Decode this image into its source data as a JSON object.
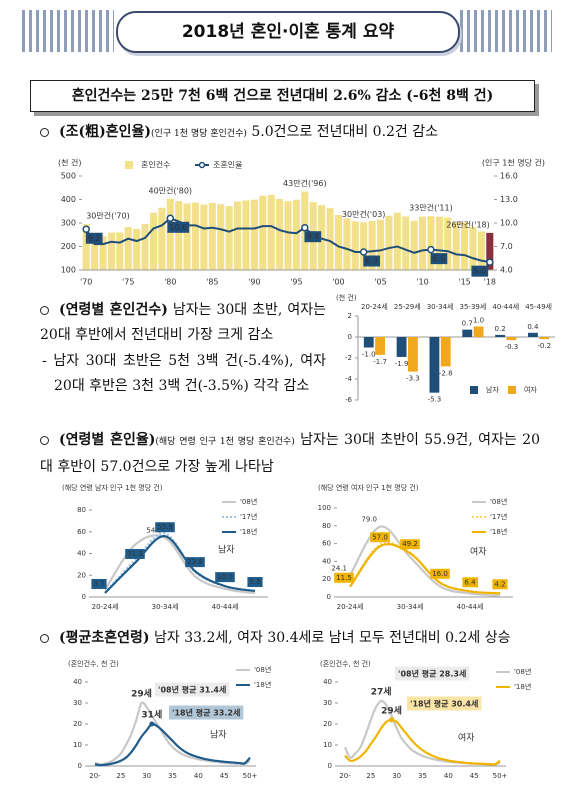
{
  "title": "2018년 혼인·이혼 통계 요약",
  "headline": "혼인건수는 25만 7천 6백 건으로 전년대비 2.6% 감소 (-6천 8백 건)",
  "sections": [
    {
      "label": "(조(粗)혼인율)",
      "note": "(인구 1천 명당 혼인건수)",
      "text": "5.0건으로 전년대비 0.2건 감소"
    },
    {
      "label": "(연령별 혼인건수)",
      "text": "남자는 30대 초반, 여자는 20대 후반에서 전년대비 가장 크게 감소",
      "detail": "- 남자 30대 초반은 5천 3백 건(-5.4%), 여자 20대 후반은 3천 3백 건(-3.5%) 각각 감소"
    },
    {
      "label": "(연령별 혼인율)",
      "note": "(해당 연령 인구 1천 명당 혼인건수)",
      "text": "남자는 30대 초반이 55.9건, 여자는 20대 후반이 57.0건으로 가장 높게 나타남"
    },
    {
      "label": "(평균초혼연령)",
      "text": "남자 33.2세, 여자 30.4세로 남녀 모두 전년대비 0.2세 상승"
    }
  ],
  "chart_data": [
    {
      "type": "combo",
      "y_unit": "(천 건)",
      "y2_unit": "(인구 1천 명당 건)",
      "legend": "top",
      "categories": [
        "'70",
        null,
        null,
        null,
        null,
        "'75",
        null,
        null,
        null,
        null,
        "'80",
        null,
        null,
        null,
        null,
        "'85",
        null,
        null,
        null,
        null,
        "'90",
        null,
        null,
        null,
        null,
        "'95",
        null,
        null,
        null,
        null,
        "'00",
        null,
        null,
        null,
        null,
        "'05",
        null,
        null,
        null,
        null,
        "'10",
        null,
        null,
        null,
        null,
        "'15",
        null,
        null,
        "'18"
      ],
      "ylim": [
        100,
        500
      ],
      "yticks": [
        100,
        200,
        300,
        400,
        500
      ],
      "y2lim": [
        4,
        16
      ],
      "y2ticks": [
        {
          "value": 4,
          "label": "4.0"
        },
        {
          "value": 7,
          "label": "7.0"
        },
        {
          "value": 10,
          "label": "10.0"
        },
        {
          "value": 13,
          "label": "13.0"
        },
        {
          "value": 16,
          "label": "16.0"
        }
      ],
      "series": [
        {
          "name": "혼인건수",
          "type": "bar",
          "color": "#f3e08a",
          "latest_color": "#8b2e3c",
          "values": [
            295,
            239,
            244,
            259,
            260,
            283,
            275,
            296,
            344,
            365,
            403,
            393,
            383,
            387,
            378,
            385,
            380,
            372,
            391,
            396,
            399,
            416,
            420,
            402,
            393,
            399,
            434,
            389,
            376,
            363,
            334,
            320,
            307,
            303,
            309,
            314,
            331,
            344,
            328,
            310,
            327,
            329,
            327,
            323,
            306,
            303,
            282,
            264,
            258
          ],
          "value_labels": [
            "30만건('70)",
            null,
            null,
            null,
            null,
            null,
            null,
            null,
            null,
            null,
            "40만건('80)",
            null,
            null,
            null,
            null,
            null,
            null,
            null,
            null,
            null,
            null,
            null,
            null,
            null,
            null,
            null,
            "43만건('96)",
            null,
            null,
            null,
            null,
            null,
            null,
            "30만건('03)",
            null,
            null,
            null,
            null,
            null,
            null,
            null,
            "33만건('11)",
            null,
            null,
            null,
            null,
            null,
            null,
            "26만건('18)"
          ]
        },
        {
          "name": "조혼인율",
          "type": "line",
          "axis": "y2",
          "color": "#1f4e79",
          "label_style": "box",
          "label_color": "#ffffff",
          "values": [
            9.2,
            7.3,
            7.3,
            7.6,
            7.5,
            8.0,
            7.7,
            8.1,
            9.3,
            9.7,
            10.6,
            10.2,
            9.7,
            9.7,
            9.3,
            9.4,
            9.2,
            8.9,
            9.3,
            9.3,
            9.3,
            9.6,
            9.6,
            9.1,
            8.8,
            8.7,
            9.4,
            8.4,
            8.0,
            7.7,
            7.0,
            6.7,
            6.3,
            6.3,
            6.4,
            6.5,
            6.8,
            7.0,
            6.6,
            6.2,
            6.5,
            6.6,
            6.5,
            6.4,
            6.0,
            5.9,
            5.5,
            5.2,
            5.0
          ],
          "value_labels": [
            "9.2",
            null,
            null,
            null,
            null,
            null,
            null,
            null,
            null,
            null,
            "10.6",
            null,
            null,
            null,
            null,
            null,
            null,
            null,
            null,
            null,
            null,
            null,
            null,
            null,
            null,
            null,
            "9.4",
            null,
            null,
            null,
            null,
            null,
            null,
            "6.3",
            null,
            null,
            null,
            null,
            null,
            null,
            null,
            "6.6",
            null,
            null,
            null,
            null,
            null,
            null,
            "5.0"
          ]
        }
      ]
    },
    {
      "type": "bar",
      "y_unit": "(천 건)",
      "legend": "bottom-right",
      "categories": [
        "20-24세",
        "25-29세",
        "30-34세",
        "35-39세",
        "40-44세",
        "45-49세"
      ],
      "ylim": [
        -6,
        2
      ],
      "yticks": [
        -6,
        -4,
        -2,
        0,
        2
      ],
      "series": [
        {
          "name": "남자",
          "color": "#1f4e79",
          "values": [
            -1.0,
            -1.9,
            -5.3,
            0.7,
            0.2,
            0.4
          ],
          "value_labels": [
            "-1.0",
            "-1.9",
            "-5.3",
            "0.7",
            "0.2",
            "0.4"
          ]
        },
        {
          "name": "여자",
          "color": "#f0a81c",
          "values": [
            -1.7,
            -3.3,
            -2.8,
            1.0,
            -0.3,
            -0.2
          ],
          "value_labels": [
            "-1.7",
            "-3.3",
            "-2.8",
            "1.0",
            "-0.3",
            "-0.2"
          ]
        }
      ]
    },
    {
      "type": "line",
      "y_unit": "(해당 연령 남자 인구 1천 명당 건)",
      "label": "남자",
      "legend": "top-right",
      "categories": [
        "20-24세",
        null,
        "30-34세",
        null,
        "40-44세",
        null
      ],
      "ylim": [
        0,
        80
      ],
      "yticks": [
        0,
        20,
        40,
        60,
        80
      ],
      "series": [
        {
          "name": "'08년",
          "color": "#c8c8c8",
          "label_style": "plain",
          "label_color": "#999999",
          "values": [
            6.6,
            48.0,
            54.5,
            19.0,
            7.5,
            3.5
          ],
          "value_labels": [
            "6.6",
            null,
            "54.5",
            null,
            null,
            null
          ]
        },
        {
          "name": "'17년",
          "color": "#9dc3e6",
          "dash": true,
          "values": [
            4.0,
            34.0,
            58.5,
            23.0,
            10.0,
            5.3
          ]
        },
        {
          "name": "'18년",
          "color": "#1f5c8a",
          "label_style": "box",
          "label_color": "#ffffff",
          "values": [
            3.7,
            31.3,
            55.9,
            23.8,
            10.0,
            5.5
          ],
          "value_labels": [
            "3.7",
            "31.3",
            "55.9",
            "23.8",
            "10.0",
            "5.5"
          ]
        }
      ]
    },
    {
      "type": "line",
      "y_unit": "(해당 연령 여자 인구 1천 명당 건)",
      "label": "여자",
      "legend": "top-right",
      "categories": [
        "20-24세",
        null,
        "30-34세",
        null,
        "40-44세",
        null
      ],
      "ylim": [
        0,
        100
      ],
      "yticks": [
        0,
        20,
        40,
        60,
        80,
        100
      ],
      "series": [
        {
          "name": "'08년",
          "color": "#c8c8c8",
          "label_style": "plain",
          "label_color": "#999999",
          "values": [
            24.1,
            79.0,
            45.0,
            12.0,
            4.0,
            1.5
          ],
          "value_labels": [
            "24.1",
            "79.0",
            null,
            null,
            null,
            null
          ]
        },
        {
          "name": "'17년",
          "color": "#f6d36b",
          "dash": true,
          "values": [
            12.0,
            59.0,
            50.0,
            16.5,
            6.3,
            4.0
          ]
        },
        {
          "name": "'18년",
          "color": "#f0b400",
          "label_style": "box",
          "label_color": "#333333",
          "values": [
            11.5,
            57.0,
            49.2,
            16.0,
            6.4,
            4.2
          ],
          "value_labels": [
            "11.5",
            "57.0",
            "49.2",
            "16.0",
            "6.4",
            "4.2"
          ]
        }
      ]
    },
    {
      "type": "line",
      "y_unit": "(혼인건수, 천 건)",
      "label": "남자",
      "legend": "top-right",
      "categories": [
        "20-",
        null,
        null,
        null,
        null,
        "25",
        null,
        null,
        null,
        null,
        "30",
        null,
        null,
        null,
        null,
        "35",
        null,
        null,
        null,
        null,
        "40",
        null,
        null,
        null,
        null,
        "45",
        null,
        null,
        null,
        null,
        "50+"
      ],
      "ylim": [
        0,
        40
      ],
      "yticks": [
        0,
        10,
        20,
        30,
        40
      ],
      "peak_labels": [
        "29세",
        "31세"
      ],
      "mean_labels": [
        "'08년 평균 31.4세",
        "'18년 평균 33.2세"
      ],
      "series": [
        {
          "name": "'08년",
          "color": "#c8c8c8",
          "values": [
            1.5,
            0.8,
            1.2,
            2.0,
            3.5,
            6.0,
            10.0,
            15.0,
            22.0,
            30.0,
            28.0,
            24.0,
            20.0,
            16.0,
            12.0,
            9.0,
            7.0,
            5.5,
            4.5,
            3.8,
            3.2,
            2.8,
            2.4,
            2.1,
            1.8,
            1.6,
            1.4,
            1.2,
            1.1,
            1.0,
            2.5
          ]
        },
        {
          "name": "'18년",
          "color": "#1f5c8a",
          "values": [
            0.8,
            0.4,
            0.6,
            1.0,
            1.6,
            2.5,
            4.0,
            6.5,
            10.0,
            14.0,
            17.0,
            20.0,
            19.0,
            17.0,
            14.5,
            12.0,
            9.5,
            7.5,
            6.0,
            5.0,
            4.2,
            3.5,
            3.0,
            2.6,
            2.3,
            2.0,
            1.8,
            1.6,
            1.4,
            1.3,
            4.0
          ]
        }
      ]
    },
    {
      "type": "line",
      "y_unit": "(혼인건수, 천 건)",
      "label": "여자",
      "legend": "top-right",
      "categories": [
        "20-",
        null,
        null,
        null,
        null,
        "25",
        null,
        null,
        null,
        null,
        "30",
        null,
        null,
        null,
        null,
        "35",
        null,
        null,
        null,
        null,
        "40",
        null,
        null,
        null,
        null,
        "45",
        null,
        null,
        null,
        null,
        "50+"
      ],
      "ylim": [
        0,
        40
      ],
      "yticks": [
        0,
        10,
        20,
        30,
        40
      ],
      "peak_labels": [
        "27세",
        "29세"
      ],
      "mean_labels": [
        "'08년 평균 28.3세",
        "'18년 평균 30.4세"
      ],
      "series": [
        {
          "name": "'08년",
          "color": "#c8c8c8",
          "values": [
            9.0,
            4.0,
            6.0,
            9.0,
            15.0,
            22.0,
            28.0,
            31.0,
            29.0,
            24.0,
            18.0,
            13.0,
            10.0,
            7.5,
            6.0,
            4.8,
            4.0,
            3.3,
            2.8,
            2.4,
            2.0,
            1.8,
            1.6,
            1.4,
            1.2,
            1.1,
            1.0,
            0.9,
            0.8,
            0.7,
            1.5
          ]
        },
        {
          "name": "'18년",
          "color": "#f0b400",
          "values": [
            5.0,
            2.5,
            3.0,
            4.5,
            7.0,
            10.5,
            14.0,
            18.0,
            21.0,
            22.0,
            21.0,
            18.0,
            15.0,
            12.0,
            9.5,
            7.5,
            6.0,
            4.8,
            3.8,
            3.2,
            2.6,
            2.2,
            1.9,
            1.6,
            1.4,
            1.2,
            1.1,
            1.0,
            0.9,
            0.8,
            2.5
          ]
        }
      ]
    }
  ]
}
